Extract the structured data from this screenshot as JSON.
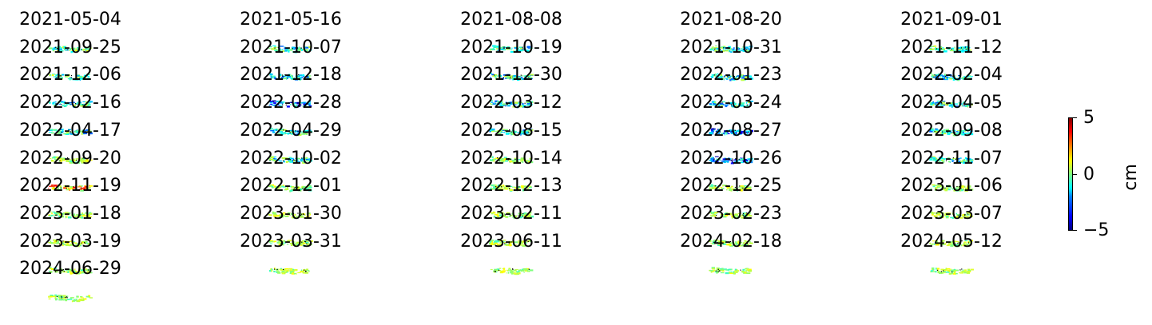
{
  "chart_data": {
    "type": "heatmap",
    "panel_titles": [
      "2021-05-04",
      "2021-05-16",
      "2021-08-08",
      "2021-08-20",
      "2021-09-01",
      "2021-09-25",
      "2021-10-07",
      "2021-10-19",
      "2021-10-31",
      "2021-11-12",
      "2021-12-06",
      "2021-12-18",
      "2021-12-30",
      "2022-01-23",
      "2022-02-04",
      "2022-02-16",
      "2022-02-28",
      "2022-03-12",
      "2022-03-24",
      "2022-04-05",
      "2022-04-17",
      "2022-04-29",
      "2022-08-15",
      "2022-08-27",
      "2022-09-08",
      "2022-09-20",
      "2022-10-02",
      "2022-10-14",
      "2022-10-26",
      "2022-11-07",
      "2022-11-19",
      "2022-12-01",
      "2022-12-13",
      "2022-12-25",
      "2023-01-06",
      "2023-01-18",
      "2023-01-30",
      "2023-02-11",
      "2023-02-23",
      "2023-03-07",
      "2023-03-19",
      "2023-03-31",
      "2023-06-11",
      "2024-02-18",
      "2024-05-12",
      "2024-06-29"
    ],
    "panel_tone": [
      0,
      -1,
      -1,
      -1,
      0,
      0,
      -1,
      -1,
      -1,
      -1,
      -1,
      -2,
      -1,
      -1,
      -1,
      -1,
      -1,
      -1,
      -2,
      -1,
      1,
      -1,
      1,
      -2,
      -1,
      3,
      1,
      1,
      1,
      1,
      1,
      1,
      1,
      1,
      1,
      1,
      1,
      1,
      1,
      1,
      1,
      1,
      1,
      1,
      1,
      1
    ],
    "grid": {
      "columns": 5,
      "rows": 10
    },
    "colorbar": {
      "colormap": "jet",
      "vmin": -5,
      "vmax": 5,
      "ticks": [
        "5",
        "0",
        "−5"
      ],
      "label": "cm"
    }
  }
}
